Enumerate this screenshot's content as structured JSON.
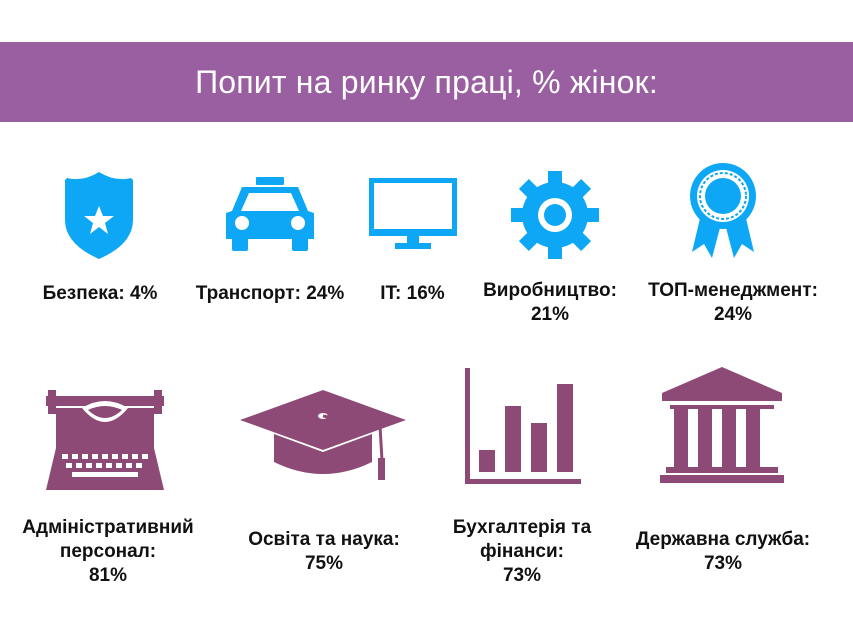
{
  "title": "Попит на ринку праці, % жінок:",
  "colors": {
    "banner": "#9a5fa0",
    "top_row_icons": "#0ea7f5",
    "bottom_row_icons": "#8e4a76",
    "text": "#111111"
  },
  "top_row": [
    {
      "icon": "police-badge-icon",
      "line1": "Безпека: 4%",
      "line2": ""
    },
    {
      "icon": "taxi-icon",
      "line1": "Транспорт: 24%",
      "line2": ""
    },
    {
      "icon": "monitor-icon",
      "line1": "IT: 16%",
      "line2": ""
    },
    {
      "icon": "gear-icon",
      "line1": "Виробництво:",
      "line2": "21%"
    },
    {
      "icon": "award-ribbon-icon",
      "line1": "ТОП-менеджмент:",
      "line2": "24%"
    }
  ],
  "bottom_row": [
    {
      "icon": "typewriter-icon",
      "line1": "Адміністративний",
      "line2": "персонал:",
      "line3": "81%"
    },
    {
      "icon": "graduation-cap-icon",
      "line1": "Освіта та наука:",
      "line2": "75%"
    },
    {
      "icon": "bar-chart-icon",
      "line1": "Бухгалтерія та",
      "line2": "фінанси:",
      "line3": "73%"
    },
    {
      "icon": "government-building-icon",
      "line1": "Державна служба:",
      "line2": "73%"
    }
  ]
}
